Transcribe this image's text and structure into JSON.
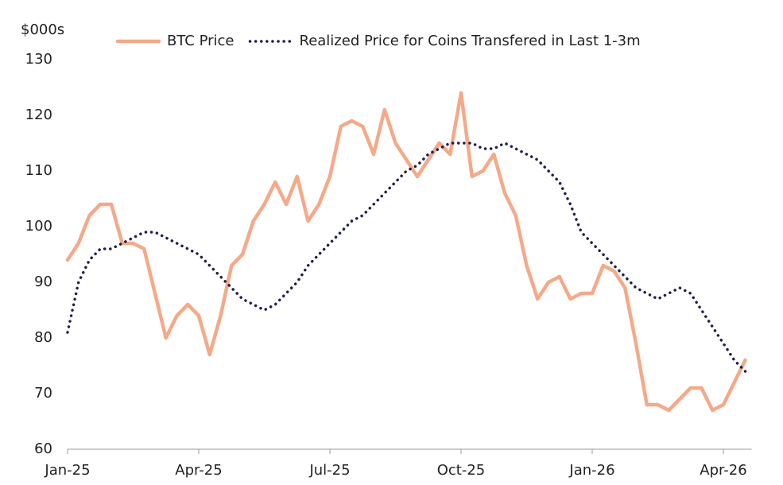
{
  "chart_data": {
    "type": "line",
    "y_unit_label": "$000s",
    "categories": [
      "Jan-25",
      null,
      null,
      null,
      null,
      null,
      null,
      null,
      null,
      null,
      null,
      null,
      "Apr-25",
      null,
      null,
      null,
      null,
      null,
      null,
      null,
      null,
      null,
      null,
      null,
      "Jul-25",
      null,
      null,
      null,
      null,
      null,
      null,
      null,
      null,
      null,
      null,
      null,
      "Oct-25",
      null,
      null,
      null,
      null,
      null,
      null,
      null,
      null,
      null,
      null,
      null,
      "Jan-26",
      null,
      null,
      null,
      null,
      null,
      null,
      null,
      null,
      null,
      null,
      null,
      "Apr-26",
      null,
      null
    ],
    "series": [
      {
        "name": "BTC Price",
        "color": "#f4a989",
        "style": "solid",
        "values": [
          94,
          97,
          102,
          104,
          104,
          97,
          97,
          96,
          88,
          80,
          84,
          86,
          84,
          77,
          84,
          93,
          95,
          101,
          104,
          108,
          104,
          109,
          101,
          104,
          109,
          118,
          119,
          118,
          113,
          121,
          115,
          112,
          109,
          112,
          115,
          113,
          124,
          109,
          110,
          113,
          106,
          102,
          93,
          87,
          90,
          91,
          87,
          88,
          88,
          93,
          92,
          89,
          79,
          68,
          68,
          67,
          69,
          71,
          71,
          67,
          68,
          72,
          76
        ]
      },
      {
        "name": "Realized Price for Coins Transfered in Last 1-3m",
        "color": "#1e1f4b",
        "style": "dotted",
        "values": [
          81,
          90,
          94,
          96,
          96,
          97,
          98,
          99,
          99,
          98,
          97,
          96,
          95,
          93,
          91,
          89,
          87,
          86,
          85,
          86,
          88,
          90,
          93,
          95,
          97,
          99,
          101,
          102,
          104,
          106,
          108,
          110,
          111,
          113,
          114,
          115,
          115,
          115,
          114,
          114,
          115,
          114,
          113,
          112,
          110,
          108,
          104,
          99,
          97,
          95,
          93,
          91,
          89,
          88,
          87,
          88,
          89,
          88,
          85,
          82,
          79,
          76,
          74
        ]
      }
    ],
    "ylim": [
      60,
      130
    ],
    "yticks": [
      60,
      70,
      80,
      90,
      100,
      110,
      120,
      130
    ],
    "grid": false,
    "legend": "top"
  }
}
